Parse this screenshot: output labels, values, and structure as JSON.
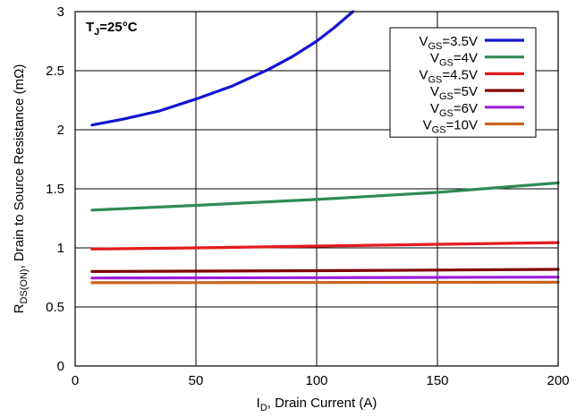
{
  "chart_data": {
    "type": "line",
    "xlabel": {
      "main": "I",
      "sub": "D",
      "rest": ", Drain Current (A)"
    },
    "ylabel": {
      "main": "R",
      "sub": "DS(ON)",
      "rest": ", Drain to Source Resistance (mΩ)"
    },
    "annotation": {
      "main": "T",
      "sub": "J",
      "rest": "=25°C"
    },
    "xlim": [
      0,
      200
    ],
    "ylim": [
      0,
      3
    ],
    "x_ticks": [
      0,
      50,
      100,
      150,
      200
    ],
    "x_tick_labels": [
      "0",
      "50",
      "100",
      "150",
      "200"
    ],
    "y_ticks": [
      0,
      0.5,
      1,
      1.5,
      2,
      2.5,
      3
    ],
    "y_tick_labels": [
      "0",
      "0.5",
      "1",
      "1.5",
      "2",
      "2.5",
      "3"
    ],
    "grid": true,
    "legend_position": "top-right",
    "series": [
      {
        "name": {
          "main": "V",
          "sub": "GS",
          "rest": "=3.5V"
        },
        "color": "#1414d2",
        "x": [
          7,
          20,
          35,
          50,
          65,
          80,
          90,
          100,
          107,
          115
        ],
        "y": [
          2.04,
          2.09,
          2.16,
          2.26,
          2.37,
          2.51,
          2.62,
          2.75,
          2.86,
          3.0
        ]
      },
      {
        "name": {
          "main": "V",
          "sub": "GS",
          "rest": "=4V"
        },
        "color": "#2e8b57",
        "x": [
          7,
          50,
          100,
          150,
          200
        ],
        "y": [
          1.32,
          1.36,
          1.41,
          1.47,
          1.55
        ]
      },
      {
        "name": {
          "main": "V",
          "sub": "GS",
          "rest": "=4.5V"
        },
        "color": "#e41a1c",
        "x": [
          7,
          50,
          100,
          150,
          200
        ],
        "y": [
          0.99,
          1.0,
          1.015,
          1.03,
          1.045
        ]
      },
      {
        "name": {
          "main": "V",
          "sub": "GS",
          "rest": "=5V"
        },
        "color": "#7f0000",
        "x": [
          7,
          50,
          100,
          150,
          200
        ],
        "y": [
          0.8,
          0.803,
          0.807,
          0.812,
          0.818
        ]
      },
      {
        "name": {
          "main": "V",
          "sub": "GS",
          "rest": "=6V"
        },
        "color": "#9b1fd6",
        "x": [
          7,
          50,
          100,
          150,
          200
        ],
        "y": [
          0.745,
          0.746,
          0.748,
          0.75,
          0.752
        ]
      },
      {
        "name": {
          "main": "V",
          "sub": "GS",
          "rest": "=10V"
        },
        "color": "#c8641e",
        "x": [
          7,
          50,
          100,
          150,
          200
        ],
        "y": [
          0.705,
          0.706,
          0.707,
          0.708,
          0.709
        ]
      }
    ]
  }
}
